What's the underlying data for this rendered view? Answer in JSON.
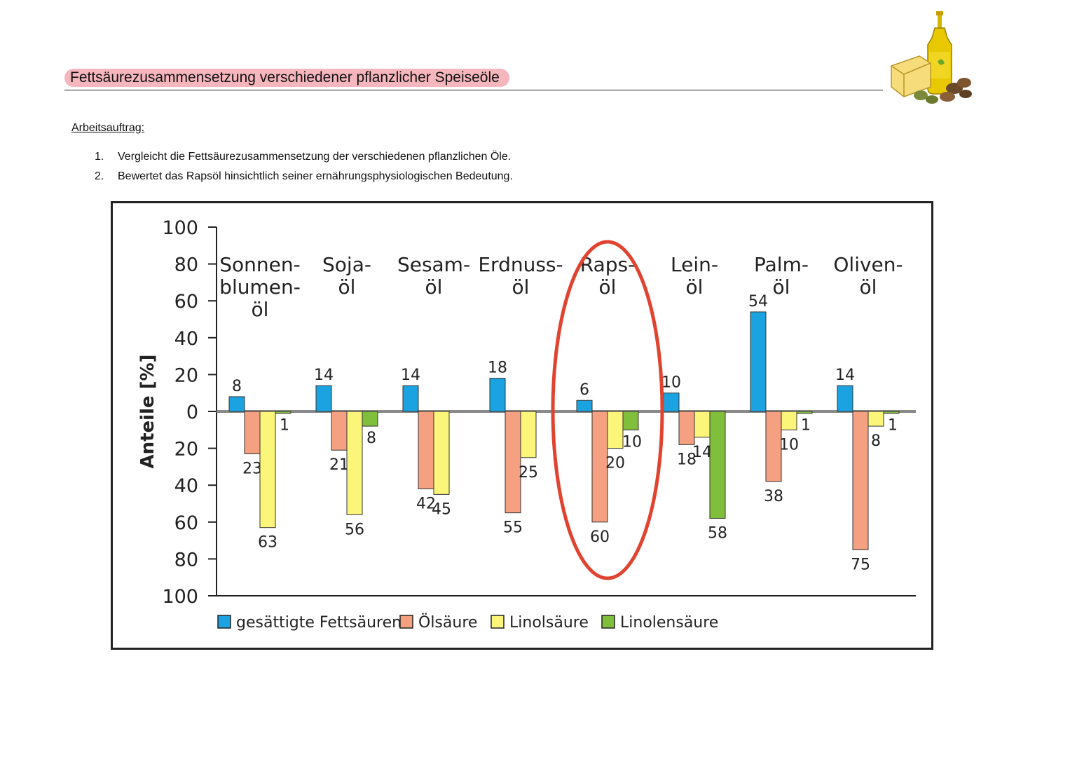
{
  "header": {
    "title": "Fettsäurezusammensetzung verschiedener pflanzlicher Speiseöle",
    "illustration_icon": "oil-bottle-butter-nuts-icon"
  },
  "task": {
    "heading": "Arbeitsauftrag:",
    "items": [
      {
        "num": "1.",
        "text": "Vergleicht die Fettsäurezusammensetzung der verschiedenen pflanzlichen Öle."
      },
      {
        "num": "2.",
        "text": "Bewertet das Rapsöl hinsichtlich seiner ernährungsphysiologischen Bedeutung."
      }
    ]
  },
  "chart_data": {
    "type": "bar",
    "ylabel": "Anteile [%]",
    "ylim": [
      -100,
      100
    ],
    "yticks": [
      "100",
      "80",
      "60",
      "40",
      "20",
      "0",
      "20",
      "40",
      "60",
      "80",
      "100"
    ],
    "categories": [
      {
        "lines": [
          "Sonnen-",
          "blumen-",
          "öl"
        ]
      },
      {
        "lines": [
          "Soja-",
          "öl"
        ]
      },
      {
        "lines": [
          "Sesam-",
          "öl"
        ]
      },
      {
        "lines": [
          "Erdnuss-",
          "öl"
        ]
      },
      {
        "lines": [
          "Raps-",
          "öl"
        ]
      },
      {
        "lines": [
          "Lein-",
          "öl"
        ]
      },
      {
        "lines": [
          "Palm-",
          "öl"
        ]
      },
      {
        "lines": [
          "Oliven-",
          "öl"
        ]
      }
    ],
    "series": [
      {
        "name": "gesättigte Fettsäuren",
        "color": "#1aa3e0",
        "direction": "up",
        "values": [
          8,
          14,
          14,
          18,
          6,
          10,
          54,
          14
        ]
      },
      {
        "name": "Ölsäure",
        "color": "#f4a081",
        "direction": "down",
        "values": [
          23,
          21,
          42,
          55,
          60,
          18,
          38,
          75
        ]
      },
      {
        "name": "Linolsäure",
        "color": "#fbf67a",
        "direction": "down",
        "values": [
          63,
          56,
          45,
          25,
          20,
          14,
          10,
          8
        ]
      },
      {
        "name": "Linolensäure",
        "color": "#80bf3c",
        "direction": "down",
        "values": [
          1,
          8,
          0,
          0,
          10,
          58,
          1,
          1
        ]
      }
    ],
    "value_labels": [
      [
        "8",
        "23",
        "63",
        "1"
      ],
      [
        "14",
        "21",
        "56",
        "8"
      ],
      [
        "14",
        "42",
        "45",
        ""
      ],
      [
        "18",
        "55",
        "25",
        ""
      ],
      [
        "6",
        "60",
        "20",
        "10"
      ],
      [
        "10",
        "18",
        "14",
        "58"
      ],
      [
        "54",
        "38",
        "10",
        "1"
      ],
      [
        "14",
        "75",
        "8",
        "1"
      ]
    ],
    "highlight": {
      "category_index": 4,
      "color": "#e0432f"
    },
    "legend_position": "bottom"
  }
}
